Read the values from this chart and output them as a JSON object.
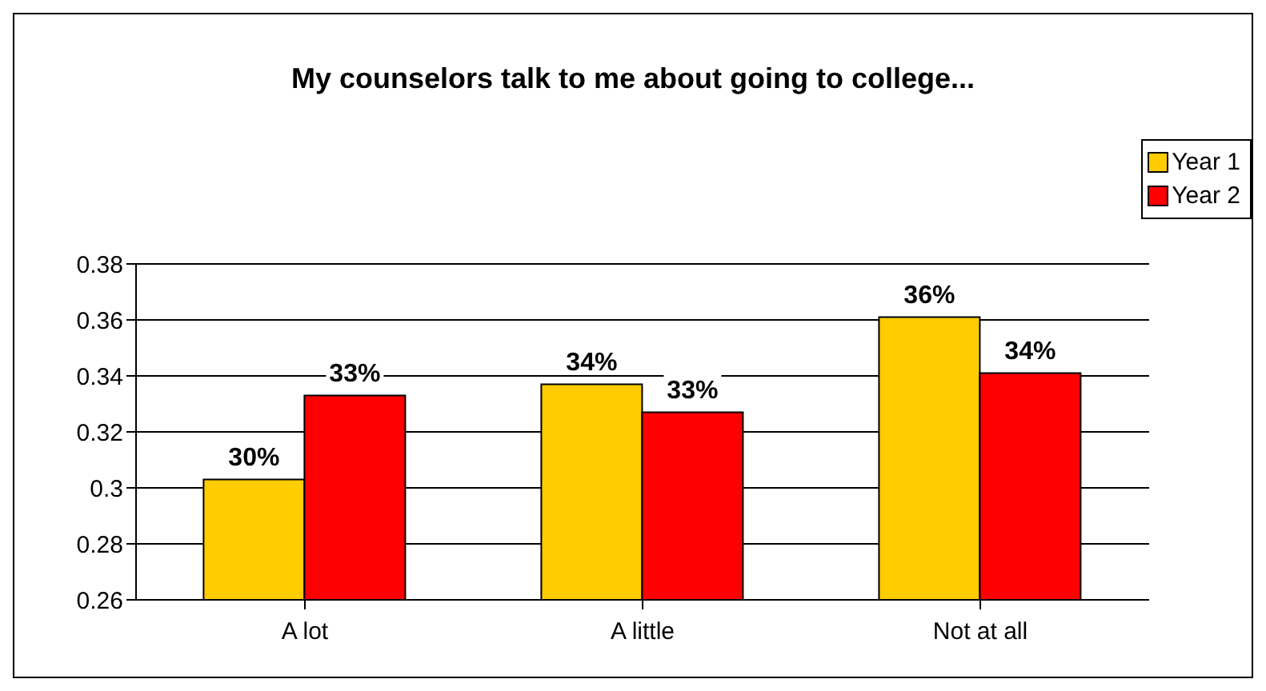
{
  "chart_data": {
    "type": "bar",
    "title": "My counselors talk to me about going to college...",
    "categories": [
      "A lot",
      "A little",
      "Not at all"
    ],
    "series": [
      {
        "name": "Year 1",
        "color": "#ffcc00",
        "values": [
          0.303,
          0.337,
          0.361
        ],
        "value_labels": [
          "30%",
          "34%",
          "36%"
        ]
      },
      {
        "name": "Year 2",
        "color": "#ff0000",
        "values": [
          0.333,
          0.327,
          0.341
        ],
        "value_labels": [
          "33%",
          "33%",
          "34%"
        ]
      }
    ],
    "ylim": [
      0.26,
      0.38
    ],
    "yticks": [
      0.26,
      0.28,
      0.3,
      0.32,
      0.34,
      0.36,
      0.38
    ],
    "grid": "y",
    "legend": "top right"
  }
}
